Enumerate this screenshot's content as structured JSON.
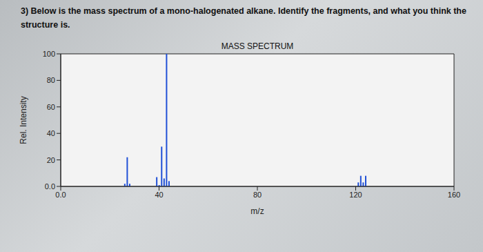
{
  "question": {
    "lines": [
      "3) Below is the mass spectrum of a mono-halogenated alkane. Identify the fragments, and what you think the",
      "structure is."
    ]
  },
  "chart_data": {
    "type": "bar",
    "title": "MASS SPECTRUM",
    "x_label": "m/z",
    "y_label": "Rel. Intensity",
    "x": [
      26,
      27,
      28,
      39,
      40,
      41,
      42,
      43,
      44,
      121,
      122,
      123,
      124
    ],
    "values": [
      2,
      22,
      2,
      7,
      1,
      30,
      6,
      100,
      4,
      3,
      8,
      3,
      8
    ],
    "color": "#1f4fd6",
    "xlim": [
      0,
      160
    ],
    "xticks": [
      {
        "value": 0,
        "label": "0.0"
      },
      40,
      80,
      120,
      160
    ],
    "ylim": [
      0,
      100
    ],
    "yticks": [
      {
        "value": 0,
        "label": "0.0"
      },
      20,
      40,
      60,
      80,
      100
    ],
    "grid": false
  }
}
